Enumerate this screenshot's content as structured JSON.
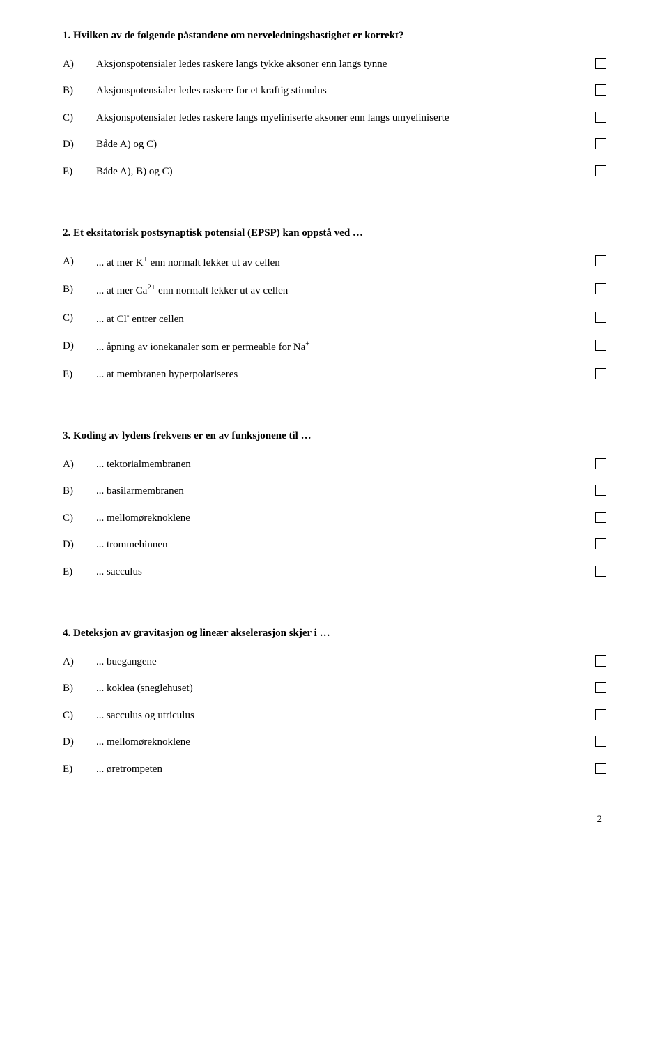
{
  "questions": [
    {
      "title": "1. Hvilken av de følgende påstandene om nerveledningshastighet er korrekt?",
      "options": [
        {
          "letter": "A)",
          "text": "Aksjonspotensialer ledes raskere langs tykke aksoner enn langs tynne"
        },
        {
          "letter": "B)",
          "text": "Aksjonspotensialer ledes raskere for et kraftig stimulus"
        },
        {
          "letter": "C)",
          "text": "Aksjonspotensialer ledes raskere langs myeliniserte aksoner enn langs umyeliniserte"
        },
        {
          "letter": "D)",
          "text": "Både A) og C)"
        },
        {
          "letter": "E)",
          "text": "Både A), B) og C)"
        }
      ]
    },
    {
      "title": "2. Et eksitatorisk postsynaptisk potensial (EPSP) kan oppstå ved …",
      "options": [
        {
          "letter": "A)",
          "html": "... at mer K<sup>+</sup> enn normalt lekker ut av cellen"
        },
        {
          "letter": "B)",
          "html": "... at mer Ca<sup>2+</sup> enn normalt lekker ut av cellen"
        },
        {
          "letter": "C)",
          "html": "... at Cl<sup>-</sup> entrer cellen"
        },
        {
          "letter": "D)",
          "html": "... åpning av ionekanaler som er permeable for Na<sup>+</sup>"
        },
        {
          "letter": "E)",
          "text": "... at membranen hyperpolariseres"
        }
      ]
    },
    {
      "title": "3. Koding av lydens frekvens er en av funksjonene til …",
      "options": [
        {
          "letter": "A)",
          "text": "... tektorialmembranen"
        },
        {
          "letter": "B)",
          "text": "... basilarmembranen"
        },
        {
          "letter": "C)",
          "text": "... mellomøreknoklene"
        },
        {
          "letter": "D)",
          "text": "... trommehinnen"
        },
        {
          "letter": "E)",
          "text": "... sacculus"
        }
      ]
    },
    {
      "title": "4. Deteksjon av gravitasjon og lineær akselerasjon skjer i …",
      "options": [
        {
          "letter": "A)",
          "text": "... buegangene"
        },
        {
          "letter": "B)",
          "text": "... koklea (sneglehuset)"
        },
        {
          "letter": "C)",
          "text": "... sacculus og utriculus"
        },
        {
          "letter": "D)",
          "text": "... mellomøreknoklene"
        },
        {
          "letter": "E)",
          "text": "... øretrompeten"
        }
      ]
    }
  ],
  "page_number": "2"
}
